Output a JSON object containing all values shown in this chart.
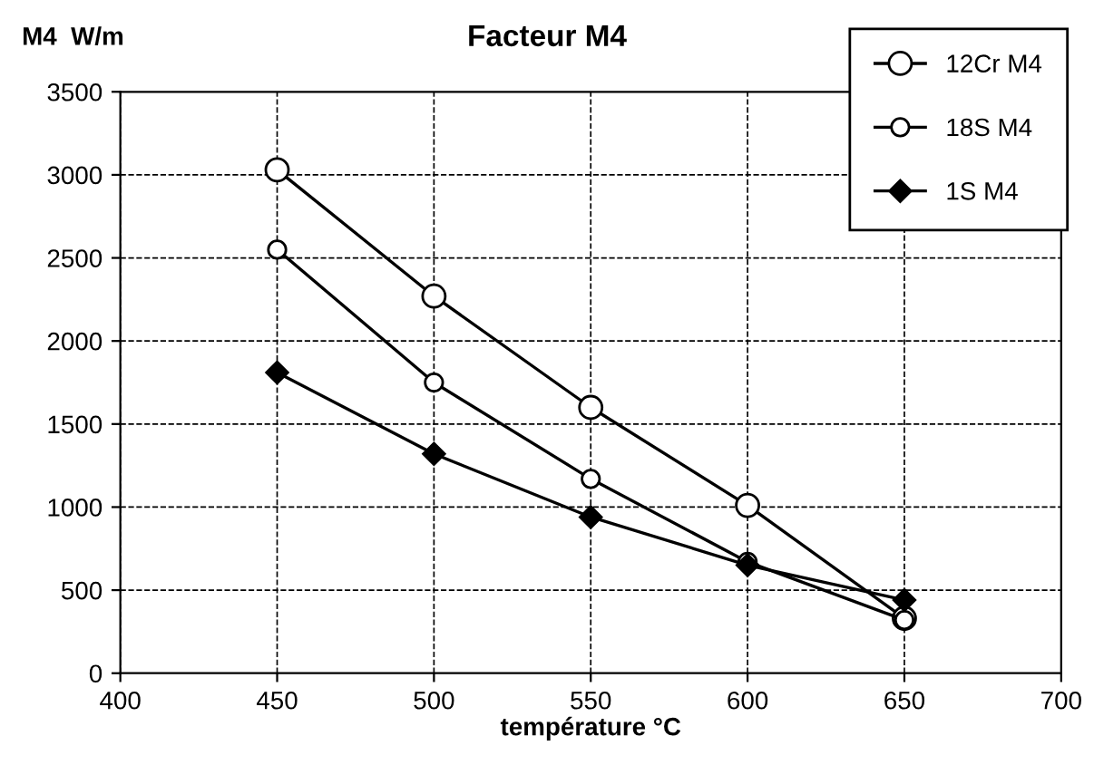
{
  "chart_data": {
    "type": "line",
    "title": "Facteur M4",
    "ylabel": "M4  W/m",
    "xlabel": "température °C",
    "x": [
      450,
      500,
      550,
      600,
      650
    ],
    "series": [
      {
        "name": "12Cr M4",
        "color": "#000000",
        "values": [
          3030,
          2270,
          1600,
          1010,
          330
        ],
        "marker": "circle"
      },
      {
        "name": "18S M4",
        "color": "#000000",
        "values": [
          2550,
          1750,
          1170,
          670,
          320
        ],
        "marker": "circle"
      },
      {
        "name": "1S M4",
        "color": "#000000",
        "values": [
          1810,
          1320,
          940,
          650,
          440
        ],
        "marker": "diamond"
      }
    ],
    "xlim": [
      400,
      700
    ],
    "xticks": [
      400,
      450,
      500,
      550,
      600,
      650,
      700
    ],
    "ylim": [
      0,
      3500
    ],
    "yticks": [
      0,
      500,
      1000,
      1500,
      2000,
      2500,
      3000,
      3500
    ],
    "grid": true,
    "legend": "top right",
    "line_style": "solid"
  }
}
